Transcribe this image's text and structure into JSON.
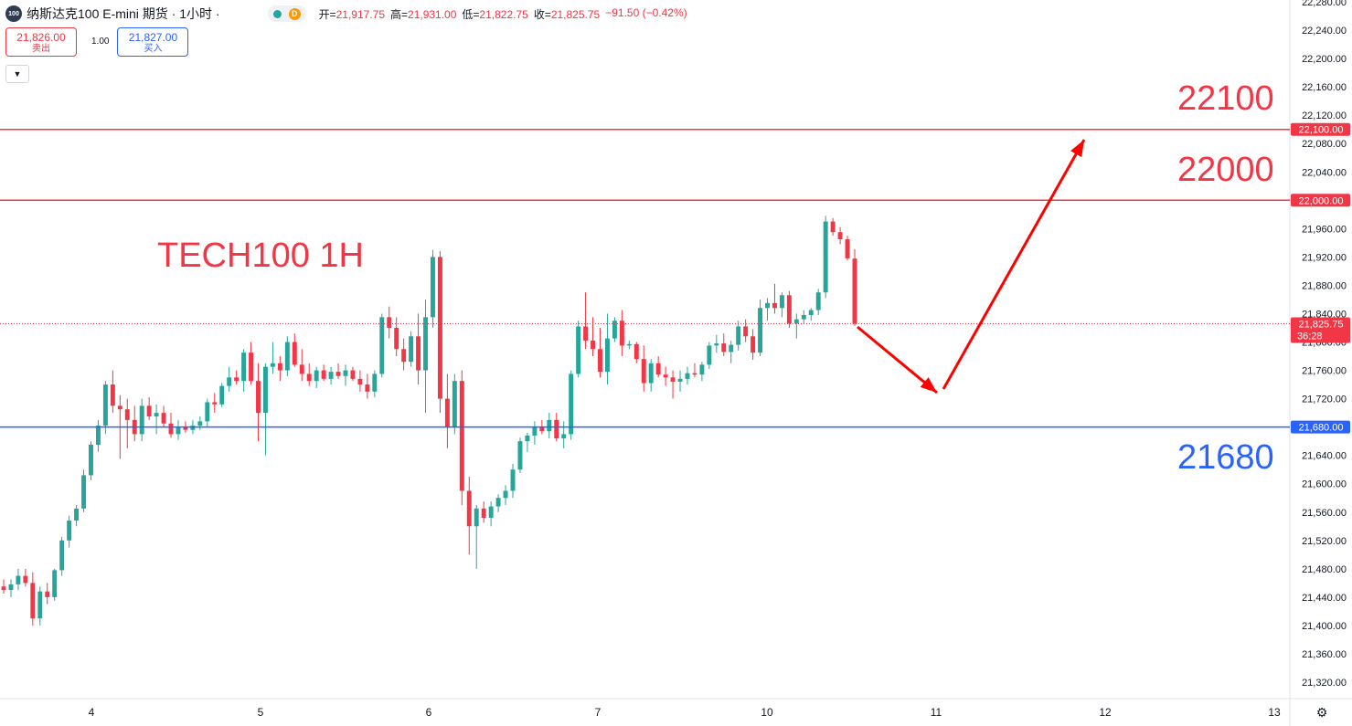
{
  "header": {
    "symbol_badge": "100",
    "title": "纳斯达克100 E-mini 期货 · 1小时 ·",
    "status_badge": "D",
    "ohlc": [
      {
        "label": "开=",
        "value": "21,917.75"
      },
      {
        "label": "高=",
        "value": "21,931.00"
      },
      {
        "label": "低=",
        "value": "21,822.75"
      },
      {
        "label": "收=",
        "value": "21,825.75"
      },
      {
        "label": "",
        "value": "−91.50 (−0.42%)"
      }
    ]
  },
  "trade": {
    "sell_price": "21,826.00",
    "sell_label": "卖出",
    "quantity": "1.00",
    "buy_price": "21,827.00",
    "buy_label": "买入",
    "collapse_icon": "chevron-down-icon"
  },
  "annotations": {
    "title": "TECH100 1H",
    "label_22100": "22100",
    "label_22000": "22000",
    "label_21680": "21680"
  },
  "colors": {
    "up": "#26a69a",
    "down": "#f23645",
    "resistance": "#f23645",
    "support": "#2962ff",
    "arrow": "#ff0000"
  },
  "chart_data": {
    "type": "candlestick",
    "title": "",
    "xlabel": "",
    "ylabel": "",
    "x_ticks": [
      "4",
      "5",
      "6",
      "7",
      "10",
      "11",
      "12",
      "13"
    ],
    "y_range": [
      21290,
      22290
    ],
    "y_ticks": [
      "22,280.00",
      "22,240.00",
      "22,200.00",
      "22,160.00",
      "22,120.00",
      "22,080.00",
      "22,040.00",
      "22,000.00",
      "21,960.00",
      "21,920.00",
      "21,880.00",
      "21,840.00",
      "21,800.00",
      "21,760.00",
      "21,720.00",
      "21,680.00",
      "21,640.00",
      "21,600.00",
      "21,560.00",
      "21,520.00",
      "21,480.00",
      "21,440.00",
      "21,400.00",
      "21,360.00",
      "21,320.00"
    ],
    "levels": [
      {
        "price": 22100,
        "label": "22,100.00",
        "color": "#f23645"
      },
      {
        "price": 22000,
        "label": "22,000.00",
        "color": "#f23645"
      },
      {
        "price": 21680,
        "label": "21,680.00",
        "color": "#2962ff"
      }
    ],
    "last_price": {
      "price": 21825.75,
      "label": "21,825.75",
      "countdown": "36:28"
    },
    "candles": [
      [
        21455,
        21465,
        21445,
        21450
      ],
      [
        21450,
        21465,
        21440,
        21458
      ],
      [
        21458,
        21480,
        21450,
        21470
      ],
      [
        21470,
        21480,
        21455,
        21460
      ],
      [
        21460,
        21475,
        21400,
        21410
      ],
      [
        21410,
        21455,
        21400,
        21448
      ],
      [
        21448,
        21460,
        21430,
        21440
      ],
      [
        21440,
        21480,
        21435,
        21478
      ],
      [
        21478,
        21525,
        21470,
        21520
      ],
      [
        21520,
        21555,
        21510,
        21548
      ],
      [
        21548,
        21570,
        21540,
        21565
      ],
      [
        21565,
        21620,
        21560,
        21612
      ],
      [
        21612,
        21660,
        21605,
        21655
      ],
      [
        21655,
        21690,
        21645,
        21682
      ],
      [
        21682,
        21745,
        21670,
        21740
      ],
      [
        21740,
        21760,
        21700,
        21710
      ],
      [
        21710,
        21725,
        21635,
        21705
      ],
      [
        21705,
        21720,
        21650,
        21690
      ],
      [
        21690,
        21710,
        21660,
        21670
      ],
      [
        21670,
        21720,
        21660,
        21710
      ],
      [
        21710,
        21722,
        21690,
        21695
      ],
      [
        21695,
        21712,
        21670,
        21700
      ],
      [
        21700,
        21710,
        21680,
        21685
      ],
      [
        21685,
        21700,
        21665,
        21670
      ],
      [
        21670,
        21690,
        21662,
        21680
      ],
      [
        21680,
        21688,
        21672,
        21676
      ],
      [
        21676,
        21690,
        21670,
        21682
      ],
      [
        21682,
        21695,
        21676,
        21688
      ],
      [
        21688,
        21720,
        21680,
        21715
      ],
      [
        21715,
        21728,
        21700,
        21712
      ],
      [
        21712,
        21742,
        21708,
        21738
      ],
      [
        21738,
        21765,
        21730,
        21750
      ],
      [
        21750,
        21760,
        21740,
        21745
      ],
      [
        21745,
        21790,
        21730,
        21785
      ],
      [
        21785,
        21800,
        21740,
        21745
      ],
      [
        21745,
        21770,
        21660,
        21700
      ],
      [
        21700,
        21770,
        21640,
        21765
      ],
      [
        21765,
        21800,
        21755,
        21770
      ],
      [
        21770,
        21780,
        21745,
        21760
      ],
      [
        21760,
        21808,
        21752,
        21800
      ],
      [
        21800,
        21812,
        21765,
        21768
      ],
      [
        21768,
        21790,
        21745,
        21755
      ],
      [
        21755,
        21770,
        21738,
        21745
      ],
      [
        21745,
        21765,
        21735,
        21760
      ],
      [
        21760,
        21768,
        21745,
        21748
      ],
      [
        21748,
        21765,
        21740,
        21758
      ],
      [
        21758,
        21770,
        21748,
        21752
      ],
      [
        21752,
        21768,
        21738,
        21760
      ],
      [
        21760,
        21765,
        21745,
        21748
      ],
      [
        21748,
        21760,
        21730,
        21740
      ],
      [
        21740,
        21755,
        21720,
        21730
      ],
      [
        21730,
        21760,
        21722,
        21755
      ],
      [
        21755,
        21840,
        21750,
        21835
      ],
      [
        21835,
        21850,
        21805,
        21820
      ],
      [
        21820,
        21835,
        21780,
        21790
      ],
      [
        21790,
        21805,
        21760,
        21772
      ],
      [
        21772,
        21815,
        21765,
        21808
      ],
      [
        21808,
        21840,
        21740,
        21760
      ],
      [
        21760,
        21860,
        21700,
        21835
      ],
      [
        21835,
        21930,
        21820,
        21920
      ],
      [
        21920,
        21928,
        21700,
        21720
      ],
      [
        21720,
        21755,
        21650,
        21680
      ],
      [
        21680,
        21755,
        21670,
        21745
      ],
      [
        21745,
        21760,
        21570,
        21590
      ],
      [
        21590,
        21610,
        21500,
        21540
      ],
      [
        21540,
        21570,
        21480,
        21565
      ],
      [
        21565,
        21575,
        21545,
        21552
      ],
      [
        21552,
        21575,
        21540,
        21568
      ],
      [
        21568,
        21585,
        21560,
        21580
      ],
      [
        21580,
        21598,
        21570,
        21590
      ],
      [
        21590,
        21628,
        21580,
        21620
      ],
      [
        21620,
        21665,
        21615,
        21660
      ],
      [
        21660,
        21672,
        21645,
        21668
      ],
      [
        21668,
        21688,
        21655,
        21680
      ],
      [
        21680,
        21690,
        21670,
        21674
      ],
      [
        21674,
        21700,
        21664,
        21690
      ],
      [
        21690,
        21700,
        21660,
        21664
      ],
      [
        21664,
        21688,
        21650,
        21670
      ],
      [
        21670,
        21760,
        21662,
        21755
      ],
      [
        21755,
        21830,
        21750,
        21822
      ],
      [
        21822,
        21870,
        21790,
        21802
      ],
      [
        21802,
        21835,
        21780,
        21790
      ],
      [
        21790,
        21820,
        21750,
        21758
      ],
      [
        21758,
        21840,
        21740,
        21805
      ],
      [
        21805,
        21835,
        21800,
        21830
      ],
      [
        21830,
        21845,
        21780,
        21795
      ],
      [
        21795,
        21802,
        21790,
        21797
      ],
      [
        21797,
        21800,
        21770,
        21776
      ],
      [
        21776,
        21795,
        21730,
        21742
      ],
      [
        21742,
        21776,
        21730,
        21770
      ],
      [
        21770,
        21780,
        21750,
        21754
      ],
      [
        21754,
        21765,
        21738,
        21750
      ],
      [
        21750,
        21760,
        21720,
        21744
      ],
      [
        21744,
        21760,
        21730,
        21748
      ],
      [
        21748,
        21765,
        21740,
        21756
      ],
      [
        21756,
        21770,
        21750,
        21754
      ],
      [
        21754,
        21772,
        21745,
        21768
      ],
      [
        21768,
        21800,
        21762,
        21795
      ],
      [
        21795,
        21810,
        21785,
        21798
      ],
      [
        21798,
        21812,
        21780,
        21786
      ],
      [
        21786,
        21802,
        21770,
        21796
      ],
      [
        21796,
        21830,
        21788,
        21822
      ],
      [
        21822,
        21832,
        21800,
        21808
      ],
      [
        21808,
        21818,
        21775,
        21785
      ],
      [
        21785,
        21860,
        21780,
        21848
      ],
      [
        21848,
        21862,
        21830,
        21855
      ],
      [
        21855,
        21882,
        21840,
        21848
      ],
      [
        21848,
        21870,
        21835,
        21866
      ],
      [
        21866,
        21872,
        21820,
        21826
      ],
      [
        21826,
        21840,
        21805,
        21832
      ],
      [
        21832,
        21845,
        21825,
        21838
      ],
      [
        21838,
        21848,
        21830,
        21845
      ],
      [
        21845,
        21875,
        21838,
        21870
      ],
      [
        21870,
        21978,
        21862,
        21970
      ],
      [
        21970,
        21975,
        21950,
        21955
      ],
      [
        21955,
        21962,
        21938,
        21945
      ],
      [
        21945,
        21950,
        21915,
        21918
      ],
      [
        21917.75,
        21931,
        21822.75,
        21825.75
      ]
    ],
    "projection_arrows": [
      {
        "from_date": "10 17:00",
        "from_price": 21820,
        "to_date": "11 02:00",
        "to_price": 21718
      },
      {
        "from_date": "11 02:00",
        "from_price": 21718,
        "to_date": "12 00:00",
        "to_price": 22085
      }
    ]
  }
}
